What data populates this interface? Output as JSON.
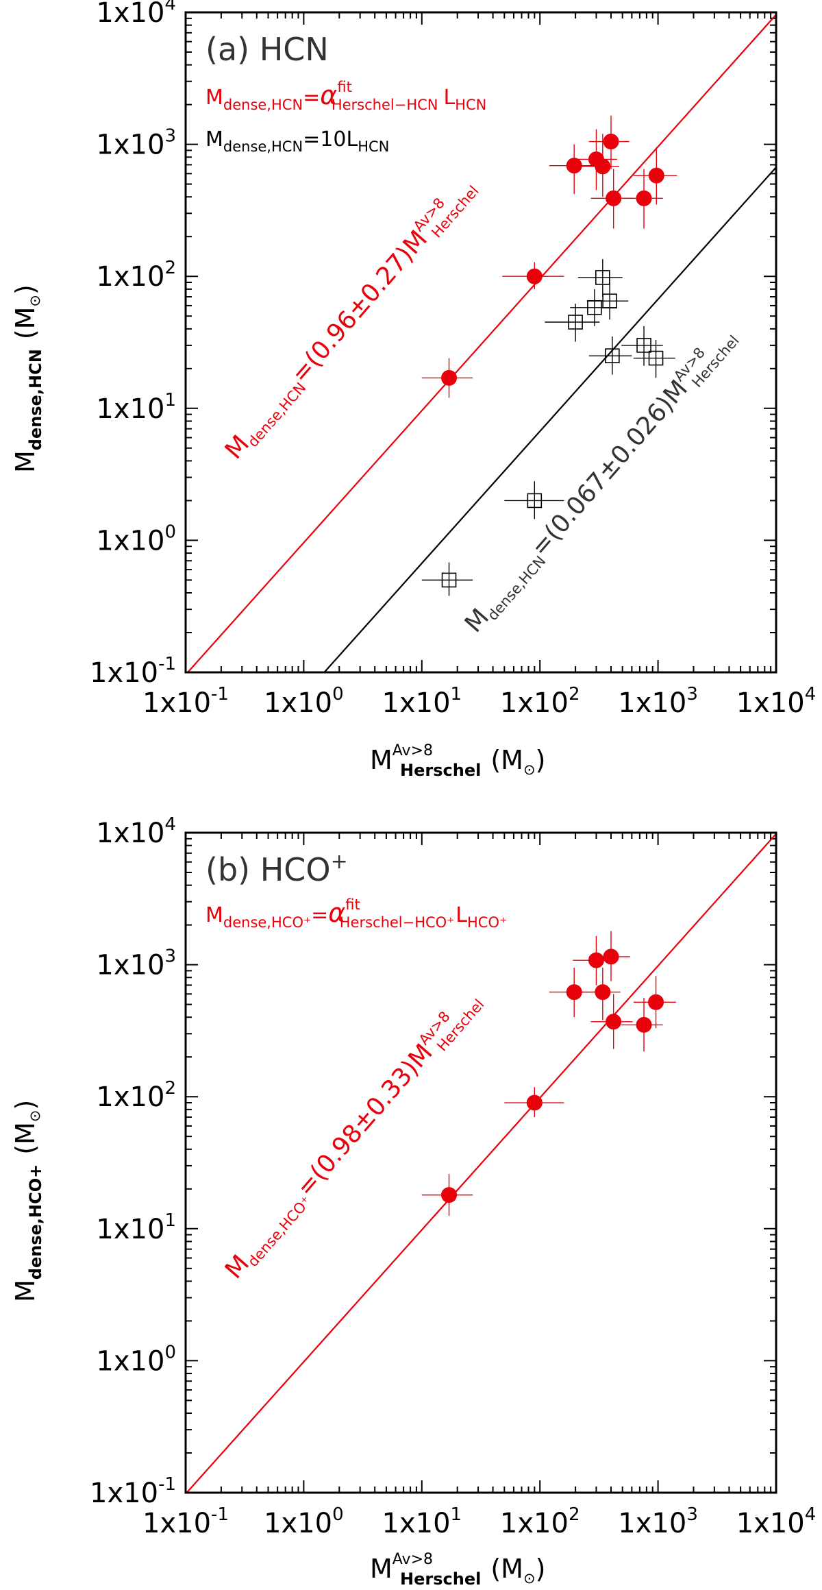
{
  "chart_data": [
    {
      "type": "scatter",
      "panel_label": "(a)",
      "panel_name": "HCN",
      "xscale": "log",
      "yscale": "log",
      "xlim": [
        0.1,
        10000
      ],
      "ylim": [
        0.1,
        10000
      ],
      "tick_exponents": [
        "-1",
        "0",
        "1",
        "2",
        "3",
        "4"
      ],
      "tick_base": "1x10",
      "xlabel": {
        "main": "M",
        "sup": "Av>8",
        "sub": "Herschel",
        "unit_open": "(M",
        "unit_close": ")",
        "sun": "⊙"
      },
      "ylabel": {
        "main": "M",
        "sub": "dense,HCN",
        "unit_open": "(M",
        "unit_close": ")",
        "sun": "⊙"
      },
      "legend": [
        {
          "color": "#e8000b",
          "main": "M",
          "sub1": "dense,HCN",
          "eq": "=",
          "alpha": "α",
          "alpha_sup": "fit",
          "alpha_sub": "Herschel−HCN",
          "l": "L",
          "l_sub": "HCN"
        },
        {
          "color": "#000000",
          "main": "M",
          "sub1": "dense,HCN",
          "eq": "=10L",
          "l_sub": "HCN"
        }
      ],
      "series": [
        {
          "name": "fit (filled circles)",
          "marker": "filled-circle",
          "color": "#e8000b",
          "points": [
            {
              "x": 17,
              "y": 17,
              "xerr": [
                10,
                27
              ],
              "yerr": [
                12,
                24
              ]
            },
            {
              "x": 90,
              "y": 100,
              "xerr": [
                48,
                160
              ],
              "yerr": [
                80,
                128
              ]
            },
            {
              "x": 195,
              "y": 690,
              "xerr": [
                120,
                330
              ],
              "yerr": [
                420,
                1000
              ]
            },
            {
              "x": 300,
              "y": 770,
              "xerr": [
                190,
                450
              ],
              "yerr": [
                450,
                1300
              ]
            },
            {
              "x": 340,
              "y": 680,
              "xerr": [
                220,
                470
              ],
              "yerr": [
                400,
                1200
              ]
            },
            {
              "x": 400,
              "y": 1050,
              "xerr": [
                260,
                570
              ],
              "yerr": [
                650,
                1650
              ]
            },
            {
              "x": 420,
              "y": 390,
              "xerr": [
                270,
                610
              ],
              "yerr": [
                230,
                650
              ]
            },
            {
              "x": 760,
              "y": 390,
              "xerr": [
                480,
                1100
              ],
              "yerr": [
                230,
                650
              ]
            },
            {
              "x": 970,
              "y": 580,
              "xerr": [
                620,
                1450
              ],
              "yerr": [
                350,
                950
              ]
            }
          ]
        },
        {
          "name": "10 L_HCN (open squares)",
          "marker": "open-square",
          "color": "#000000",
          "points": [
            {
              "x": 17,
              "y": 0.5,
              "xerr": [
                10,
                27
              ],
              "yerr": [
                0.38,
                0.68
              ]
            },
            {
              "x": 90,
              "y": 2.0,
              "xerr": [
                50,
                160
              ],
              "yerr": [
                1.45,
                2.8
              ]
            },
            {
              "x": 200,
              "y": 45,
              "xerr": [
                110,
                320
              ],
              "yerr": [
                32,
                62
              ]
            },
            {
              "x": 290,
              "y": 58,
              "xerr": [
                180,
                440
              ],
              "yerr": [
                42,
                80
              ]
            },
            {
              "x": 340,
              "y": 98,
              "xerr": [
                210,
                500
              ],
              "yerr": [
                70,
                135
              ]
            },
            {
              "x": 390,
              "y": 65,
              "xerr": [
                250,
                560
              ],
              "yerr": [
                47,
                90
              ]
            },
            {
              "x": 410,
              "y": 25,
              "xerr": [
                260,
                600
              ],
              "yerr": [
                18,
                35
              ]
            },
            {
              "x": 760,
              "y": 30,
              "xerr": [
                490,
                1100
              ],
              "yerr": [
                21,
                42
              ]
            },
            {
              "x": 960,
              "y": 24,
              "xerr": [
                620,
                1400
              ],
              "yerr": [
                17,
                33
              ]
            }
          ]
        }
      ],
      "lines": [
        {
          "name": "fit",
          "slope": 0.96,
          "color": "#e8000b",
          "lbl_m": "M",
          "lbl_sub": "dense,HCN",
          "lbl_text": "=(0.96±0.27)M",
          "lbl_sup": "Av>8",
          "lbl_sub2": "Herschel"
        },
        {
          "name": "10 L_HCN",
          "slope": 0.067,
          "color": "#000000",
          "lbl_m": "M",
          "lbl_sub": "dense,HCN",
          "lbl_text": "=(0.067±0.026)M",
          "lbl_sup": "Av>8",
          "lbl_sub2": "Herschel"
        }
      ]
    },
    {
      "type": "scatter",
      "panel_label": "(b)",
      "panel_name": "HCO",
      "panel_name_sup": "+",
      "xscale": "log",
      "yscale": "log",
      "xlim": [
        0.1,
        10000
      ],
      "ylim": [
        0.1,
        10000
      ],
      "tick_exponents": [
        "-1",
        "0",
        "1",
        "2",
        "3",
        "4"
      ],
      "tick_base": "1x10",
      "xlabel": {
        "main": "M",
        "sup": "Av>8",
        "sub": "Herschel",
        "unit_open": "(M",
        "unit_close": ")",
        "sun": "⊙"
      },
      "ylabel": {
        "main": "M",
        "sub": "dense,HCO+",
        "unit_open": "(M",
        "unit_close": ")",
        "sun": "⊙"
      },
      "legend": [
        {
          "color": "#e8000b",
          "main": "M",
          "sub1": "dense,HCO⁺",
          "eq": "=",
          "alpha": "α",
          "alpha_sup": "fit",
          "alpha_sub": "Herschel−HCO⁺",
          "l": "L",
          "l_sub": "HCO⁺"
        }
      ],
      "series": [
        {
          "name": "fit (filled circles)",
          "marker": "filled-circle",
          "color": "#e8000b",
          "points": [
            {
              "x": 17,
              "y": 18,
              "xerr": [
                10,
                27
              ],
              "yerr": [
                12.5,
                26
              ]
            },
            {
              "x": 90,
              "y": 90,
              "xerr": [
                50,
                160
              ],
              "yerr": [
                70,
                118
              ]
            },
            {
              "x": 195,
              "y": 620,
              "xerr": [
                120,
                330
              ],
              "yerr": [
                400,
                950
              ]
            },
            {
              "x": 300,
              "y": 1080,
              "xerr": [
                190,
                450
              ],
              "yerr": [
                700,
                1650
              ]
            },
            {
              "x": 340,
              "y": 620,
              "xerr": [
                210,
                480
              ],
              "yerr": [
                380,
                950
              ]
            },
            {
              "x": 400,
              "y": 1150,
              "xerr": [
                260,
                580
              ],
              "yerr": [
                750,
                1800
              ]
            },
            {
              "x": 420,
              "y": 370,
              "xerr": [
                270,
                610
              ],
              "yerr": [
                230,
                600
              ]
            },
            {
              "x": 760,
              "y": 350,
              "xerr": [
                490,
                1100
              ],
              "yerr": [
                220,
                560
              ]
            },
            {
              "x": 960,
              "y": 520,
              "xerr": [
                620,
                1420
              ],
              "yerr": [
                330,
                820
              ]
            }
          ]
        }
      ],
      "lines": [
        {
          "name": "fit",
          "slope": 0.98,
          "color": "#e8000b",
          "lbl_m": "M",
          "lbl_sub": "dense,HCO⁺",
          "lbl_text": "=(0.98±0.33)M",
          "lbl_sup": "Av>8",
          "lbl_sub2": "Herschel"
        }
      ]
    }
  ]
}
